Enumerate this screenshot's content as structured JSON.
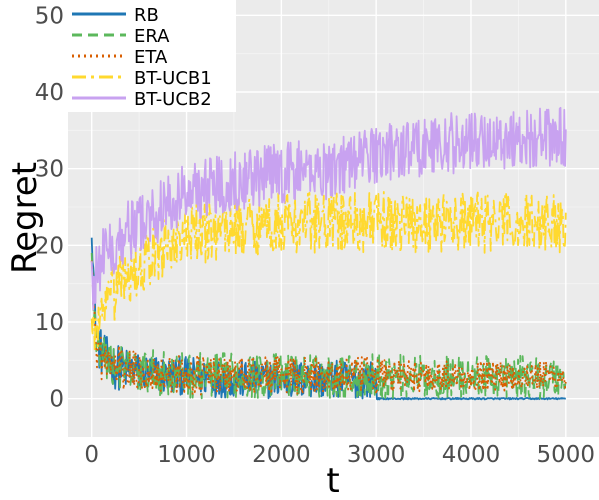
{
  "chart_data": {
    "type": "line",
    "title": "",
    "xlabel": "t",
    "ylabel": "Regret",
    "xlim": [
      -250,
      5350
    ],
    "ylim": [
      -5,
      52
    ],
    "xticks": [
      0,
      1000,
      2000,
      3000,
      4000,
      5000
    ],
    "yticks": [
      0,
      10,
      20,
      30,
      40,
      50
    ],
    "grid": true,
    "legend_position": "top-left",
    "background": "#ebebeb",
    "series": [
      {
        "name": "RB",
        "color": "#1f77b4",
        "dash": "solid",
        "x": [
          0,
          20,
          50,
          100,
          200,
          300,
          500,
          800,
          1000,
          1500,
          2000,
          2500,
          3000,
          3001,
          3500,
          4000,
          4500,
          5000
        ],
        "y": [
          21,
          16,
          8,
          6,
          4.5,
          4,
          3.5,
          3,
          3,
          2.5,
          2.5,
          2.5,
          2.5,
          0,
          0,
          0,
          0,
          0
        ],
        "noise": [
          0,
          3,
          3,
          3,
          3,
          3,
          2.5,
          2.5,
          2.5,
          2.5,
          2.5,
          2.5,
          2.5,
          0.1,
          0.1,
          0.1,
          0.1,
          0.1
        ]
      },
      {
        "name": "ERA",
        "color": "#5cb85c",
        "dash": "10,6",
        "x": [
          0,
          20,
          50,
          100,
          200,
          300,
          500,
          800,
          1000,
          1500,
          2000,
          2500,
          3000,
          3500,
          4000,
          4500,
          5000
        ],
        "y": [
          19,
          13,
          8,
          6,
          4.5,
          4,
          3.5,
          3.2,
          3,
          3,
          3,
          3,
          3,
          2.8,
          2.8,
          2.8,
          2.8
        ],
        "noise": [
          0,
          3,
          3,
          3,
          3,
          3,
          3,
          3,
          3,
          3,
          3,
          3,
          3,
          2.8,
          2.8,
          2.8,
          2.8
        ]
      },
      {
        "name": "ETA",
        "color": "#d95f02",
        "dash": "2,4",
        "x": [
          0,
          20,
          50,
          100,
          200,
          300,
          500,
          800,
          1000,
          1500,
          2000,
          2500,
          3000,
          3500,
          4000,
          4500,
          5000
        ],
        "y": [
          18,
          12,
          7,
          5.5,
          4.5,
          4,
          3.5,
          3.2,
          3,
          3,
          3,
          3,
          3,
          3,
          3,
          3,
          3
        ],
        "noise": [
          0,
          3,
          3,
          3,
          3,
          3,
          2.5,
          2.5,
          2.5,
          2.5,
          2.5,
          2.5,
          2.5,
          2,
          2,
          2,
          2
        ]
      },
      {
        "name": "BT-UCB1",
        "color": "#ffd92f",
        "dash": "14,5,3,5",
        "x": [
          0,
          20,
          50,
          100,
          200,
          300,
          500,
          800,
          1000,
          1500,
          2000,
          2500,
          3000,
          3500,
          4000,
          4500,
          5000
        ],
        "y": [
          10,
          8,
          9,
          10,
          13,
          15,
          17,
          20,
          21,
          22.5,
          23,
          23,
          23,
          23,
          23,
          23,
          23
        ],
        "noise": [
          2,
          3,
          3,
          3,
          4,
          4,
          4,
          4,
          4,
          4,
          4,
          4,
          4,
          4,
          4,
          4,
          4
        ]
      },
      {
        "name": "BT-UCB2",
        "color": "#c8a2f0",
        "dash": "solid",
        "x": [
          0,
          20,
          50,
          100,
          200,
          300,
          500,
          800,
          1000,
          1500,
          2000,
          2500,
          3000,
          3500,
          4000,
          4500,
          5000
        ],
        "y": [
          17,
          15,
          17,
          18,
          20,
          21,
          23,
          25,
          27,
          28.5,
          29.5,
          30,
          32,
          33,
          33.5,
          34,
          34
        ],
        "noise": [
          3,
          4,
          4,
          4,
          4,
          4,
          4,
          4,
          4,
          4,
          4,
          4,
          4,
          4,
          4,
          4,
          4
        ]
      }
    ]
  }
}
